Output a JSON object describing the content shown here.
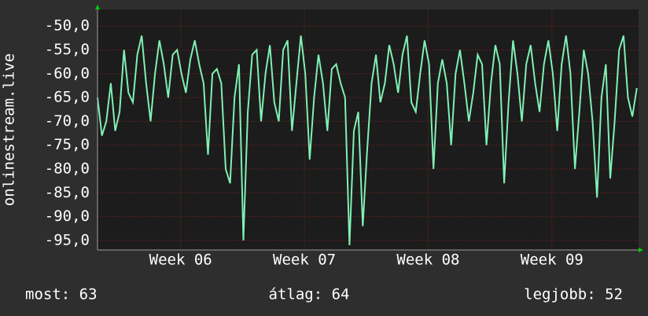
{
  "chart_data": {
    "type": "line",
    "ylabel": "onlinestream.live",
    "x": [
      0,
      0.25,
      0.5,
      0.75,
      1,
      1.25,
      1.5,
      1.75,
      2,
      2.25,
      2.5,
      2.75,
      3,
      3.25,
      3.5,
      3.75,
      4,
      4.25,
      4.5,
      4.75,
      5,
      5.25,
      5.5,
      5.75,
      6,
      6.25,
      6.5,
      6.75,
      7,
      7.25,
      7.5,
      7.75,
      8,
      8.25,
      8.5,
      8.75,
      9,
      9.25,
      9.5,
      9.75,
      10,
      10.25,
      10.5,
      10.75,
      11,
      11.25,
      11.5,
      11.75,
      12,
      12.25,
      12.5,
      12.75,
      13,
      13.25,
      13.5,
      13.75,
      14,
      14.25,
      14.5,
      14.75,
      15,
      15.25,
      15.5,
      15.75,
      16,
      16.25,
      16.5,
      16.75,
      17,
      17.25,
      17.5,
      17.75,
      18,
      18.25,
      18.5,
      18.75,
      19,
      19.25,
      19.5,
      19.75,
      20,
      20.25,
      20.5,
      20.75,
      21,
      21.25,
      21.5,
      21.75,
      22,
      22.25,
      22.5,
      22.75,
      23,
      23.25,
      23.5,
      23.75,
      24,
      24.25,
      24.5,
      24.75,
      25,
      25.25,
      25.5,
      25.75,
      26,
      26.25,
      26.5,
      26.75,
      27,
      27.25,
      27.5,
      27.75,
      28,
      28.25,
      28.5,
      28.75,
      29,
      29.25,
      29.5,
      29.75,
      30,
      30.25,
      30.5
    ],
    "series": [
      {
        "name": "onlinestream.live",
        "color": "#7ff0b4",
        "values": [
          -65,
          -73,
          -70,
          -62,
          -72,
          -68,
          -55,
          -64,
          -66,
          -56,
          -52,
          -62,
          -70,
          -60,
          -53,
          -58,
          -65,
          -56,
          -55,
          -60,
          -64,
          -57,
          -53,
          -58,
          -62,
          -77,
          -60,
          -59,
          -62,
          -80,
          -83,
          -65,
          -58,
          -95,
          -68,
          -56,
          -55,
          -70,
          -60,
          -54,
          -66,
          -70,
          -55,
          -53,
          -72,
          -62,
          -52,
          -60,
          -78,
          -65,
          -56,
          -62,
          -72,
          -59,
          -58,
          -62,
          -65,
          -96,
          -72,
          -68,
          -92,
          -76,
          -62,
          -56,
          -66,
          -62,
          -54,
          -58,
          -64,
          -56,
          -52,
          -66,
          -68,
          -60,
          -53,
          -58,
          -80,
          -62,
          -57,
          -62,
          -75,
          -60,
          -55,
          -62,
          -70,
          -64,
          -56,
          -58,
          -75,
          -62,
          -54,
          -58,
          -83,
          -66,
          -53,
          -60,
          -70,
          -58,
          -54,
          -62,
          -68,
          -58,
          -53,
          -60,
          -72,
          -58,
          -52,
          -60,
          -80,
          -68,
          -55,
          -60,
          -70,
          -86,
          -65,
          -58,
          -82,
          -70,
          -55,
          -52,
          -65,
          -69,
          -63
        ]
      }
    ],
    "xlim": [
      0,
      30.6
    ],
    "xticks": [
      {
        "value": 4.7,
        "label": "Week 06"
      },
      {
        "value": 11.7,
        "label": "Week 07"
      },
      {
        "value": 18.7,
        "label": "Week 08"
      },
      {
        "value": 25.7,
        "label": "Week 09"
      }
    ],
    "ylim": [
      -97,
      -46.5
    ],
    "yticks": [
      {
        "value": -50,
        "label": "-50,0"
      },
      {
        "value": -55,
        "label": "-55,0"
      },
      {
        "value": -60,
        "label": "-60,0"
      },
      {
        "value": -65,
        "label": "-65,0"
      },
      {
        "value": -70,
        "label": "-70,0"
      },
      {
        "value": -75,
        "label": "-75,0"
      },
      {
        "value": -80,
        "label": "-80,0"
      },
      {
        "value": -85,
        "label": "-85,0"
      },
      {
        "value": -90,
        "label": "-90,0"
      },
      {
        "value": -95,
        "label": "-95,0"
      }
    ],
    "grid": true,
    "footer": [
      "most: 63",
      "átlag: 64",
      "legjobb: 52"
    ]
  }
}
